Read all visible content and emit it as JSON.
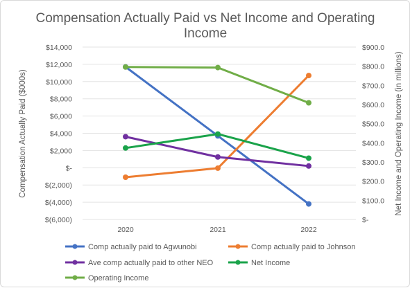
{
  "chart_data": {
    "type": "line",
    "title_lines": [
      "Compensation Actually Paid vs Net Income and Operating",
      "Income"
    ],
    "y_left_label": "Compensation Actually Paid ($000s)",
    "y_right_label": "Net Income and Operating Income (in millions)",
    "categories": [
      "2020",
      "2021",
      "2022"
    ],
    "y_left": {
      "min": -6000,
      "max": 14000,
      "ticks": [
        14000,
        12000,
        10000,
        8000,
        6000,
        4000,
        2000,
        0,
        -2000,
        -4000,
        -6000
      ],
      "tick_labels": [
        "$14,000",
        "$12,000",
        "$10,000",
        "$8,000",
        "$6,000",
        "$4,000",
        "$2,000",
        "$-",
        "$(2,000)",
        "$(4,000)",
        "$(6,000)"
      ]
    },
    "y_right": {
      "min": 0,
      "max": 900,
      "ticks": [
        900,
        800,
        700,
        600,
        500,
        400,
        300,
        200,
        100,
        0
      ],
      "tick_labels": [
        "$900.0",
        "$800.0",
        "$700.0",
        "$600.0",
        "$500.0",
        "$400.0",
        "$300.0",
        "$200.0",
        "$100.0",
        "$-"
      ]
    },
    "grid": true,
    "legend_position": "bottom",
    "series": [
      {
        "name": "Comp actually paid to Agwunobi",
        "axis": "left",
        "color": "#4472c4",
        "values": [
          11700,
          3700,
          -4200
        ]
      },
      {
        "name": "Comp actually paid to Johnson",
        "axis": "left",
        "color": "#ed7d31",
        "values": [
          -1100,
          -50,
          10700
        ]
      },
      {
        "name": "Ave comp actually paid to other  NEO",
        "axis": "left",
        "color": "#7030a0",
        "values": [
          3600,
          1250,
          200
        ]
      },
      {
        "name": "Net Income",
        "axis": "right",
        "color": "#1aa34a",
        "values": [
          373,
          446,
          320
        ]
      },
      {
        "name": "Operating Income",
        "axis": "right",
        "color": "#70ad47",
        "values": [
          796,
          793,
          609
        ]
      }
    ]
  }
}
